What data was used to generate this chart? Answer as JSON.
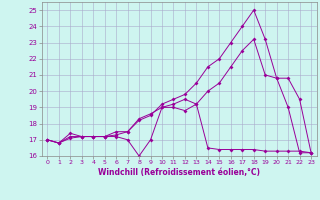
{
  "xlabel": "Windchill (Refroidissement éolien,°C)",
  "background_color": "#cef5f0",
  "line_color": "#990099",
  "xlim": [
    -0.5,
    23.5
  ],
  "ylim": [
    16,
    25.5
  ],
  "yticks": [
    16,
    17,
    18,
    19,
    20,
    21,
    22,
    23,
    24,
    25
  ],
  "xticks": [
    0,
    1,
    2,
    3,
    4,
    5,
    6,
    7,
    8,
    9,
    10,
    11,
    12,
    13,
    14,
    15,
    16,
    17,
    18,
    19,
    20,
    21,
    22,
    23
  ],
  "series1_x": [
    0,
    1,
    2,
    3,
    4,
    5,
    6,
    7,
    8,
    9,
    10,
    11,
    12,
    13,
    14,
    15,
    16,
    17,
    18,
    19,
    20,
    21,
    22,
    23
  ],
  "series1_y": [
    17.0,
    16.8,
    17.1,
    17.2,
    17.2,
    17.2,
    17.2,
    17.0,
    16.0,
    17.0,
    19.0,
    19.0,
    18.8,
    19.2,
    16.5,
    16.4,
    16.4,
    16.4,
    16.4,
    16.3,
    16.3,
    16.3,
    16.3,
    16.2
  ],
  "series2_x": [
    0,
    1,
    2,
    3,
    4,
    5,
    6,
    7,
    8,
    9,
    10,
    11,
    12,
    13,
    14,
    15,
    16,
    17,
    18,
    19,
    20,
    21,
    22,
    23
  ],
  "series2_y": [
    17.0,
    16.8,
    17.2,
    17.2,
    17.2,
    17.2,
    17.3,
    17.5,
    18.3,
    18.6,
    19.0,
    19.2,
    19.5,
    19.2,
    20.0,
    20.5,
    21.5,
    22.5,
    23.2,
    21.0,
    20.8,
    19.0,
    16.2,
    16.2
  ],
  "series3_x": [
    0,
    1,
    2,
    3,
    4,
    5,
    6,
    7,
    8,
    9,
    10,
    11,
    12,
    13,
    14,
    15,
    16,
    17,
    18,
    19,
    20,
    21,
    22,
    23
  ],
  "series3_y": [
    17.0,
    16.8,
    17.4,
    17.2,
    17.2,
    17.2,
    17.5,
    17.5,
    18.2,
    18.5,
    19.2,
    19.5,
    19.8,
    20.5,
    21.5,
    22.0,
    23.0,
    24.0,
    25.0,
    23.2,
    20.8,
    20.8,
    19.5,
    16.2
  ]
}
